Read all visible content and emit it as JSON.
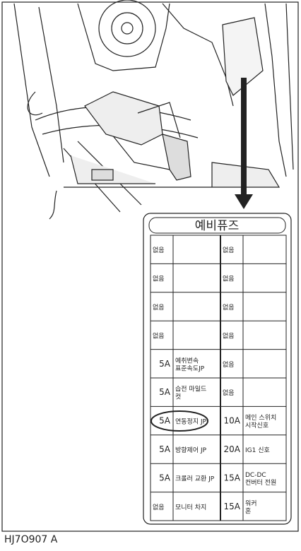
{
  "title": "예비퓨즈",
  "caption": "HJ7O907 A",
  "table": {
    "rows": [
      [
        "없음",
        null,
        "없음",
        null
      ],
      [
        "없음",
        null,
        "없음",
        null
      ],
      [
        "없음",
        null,
        "없음",
        null
      ],
      [
        "없음",
        null,
        "없음",
        null
      ],
      [
        "5A",
        [
          "예취변속",
          "표준속도JP"
        ],
        "없음",
        null
      ],
      [
        "5A",
        [
          "습전 마일드",
          "컷"
        ],
        "없음",
        null
      ],
      [
        "5A",
        [
          "연동정지 JP"
        ],
        "10A",
        [
          "메인 스위치",
          "시작신호"
        ]
      ],
      [
        "5A",
        [
          "방향제어 JP"
        ],
        "20A",
        [
          "IG1 신호"
        ]
      ],
      [
        "5A",
        [
          "크롤러 교환 JP"
        ],
        "15A",
        [
          "DC-DC",
          "컨버터 전원"
        ]
      ],
      [
        "없음",
        [
          "모니터 차지"
        ],
        "15A",
        [
          "워커",
          "혼"
        ]
      ]
    ]
  }
}
